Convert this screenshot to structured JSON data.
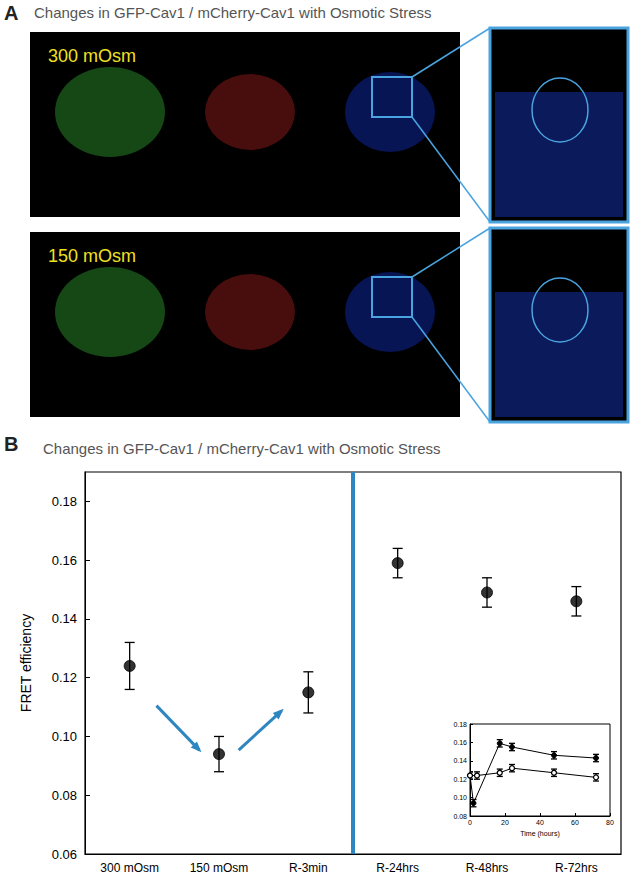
{
  "panel_a": {
    "label": "A",
    "title": "Changes in GFP-Cav1 / mCherry-Cav1 with Osmotic Stress",
    "rows": [
      {
        "label": "300 mOsm"
      },
      {
        "label": "150 mOsm"
      }
    ]
  },
  "panel_b": {
    "label": "B"
  },
  "chart_data": [
    {
      "type": "scatter",
      "title": "Changes in GFP-Cav1 / mCherry-Cav1 with Osmotic Stress",
      "y_label": "FRET efficiency",
      "categories": [
        "300 mOsm",
        "150 mOsm",
        "R-3min",
        "R-24hrs",
        "R-48hrs",
        "R-72hrs"
      ],
      "values": [
        0.124,
        0.094,
        0.115,
        0.159,
        0.149,
        0.146
      ],
      "errors": [
        0.008,
        0.006,
        0.007,
        0.005,
        0.005,
        0.005
      ],
      "color": "#000000",
      "marker": "filled",
      "ylim": [
        0.06,
        0.19
      ],
      "yticks": [
        0.06,
        0.08,
        {
          "value": 0.1,
          "label": "0.10"
        },
        0.12,
        0.14,
        0.16,
        0.18
      ],
      "grid": false
    },
    {
      "type": "line",
      "x_label": "Time (hours)",
      "series": [
        {
          "color": "#000000",
          "marker": "filled",
          "x": [
            0,
            2,
            17,
            24,
            48,
            72
          ],
          "values": [
            0.124,
            0.094,
            0.159,
            0.155,
            0.146,
            0.143
          ],
          "errors": [
            0.004,
            0.004,
            0.004,
            0.004,
            0.004,
            0.004
          ]
        },
        {
          "color": "#000000",
          "marker": "open",
          "x": [
            0,
            4,
            17,
            24,
            48,
            72
          ],
          "values": [
            0.124,
            0.124,
            0.127,
            0.132,
            0.127,
            0.122
          ],
          "errors": [
            0.004,
            0.004,
            0.004,
            0.004,
            0.004,
            0.004
          ]
        }
      ],
      "xlim": [
        0,
        80
      ],
      "xticks": [
        0,
        20,
        40,
        60,
        80
      ],
      "ylim": [
        0.08,
        0.18
      ],
      "yticks": [
        0.08,
        {
          "value": 0.1,
          "label": "0.10"
        },
        0.12,
        0.14,
        0.16,
        0.18
      ],
      "grid": false
    }
  ]
}
